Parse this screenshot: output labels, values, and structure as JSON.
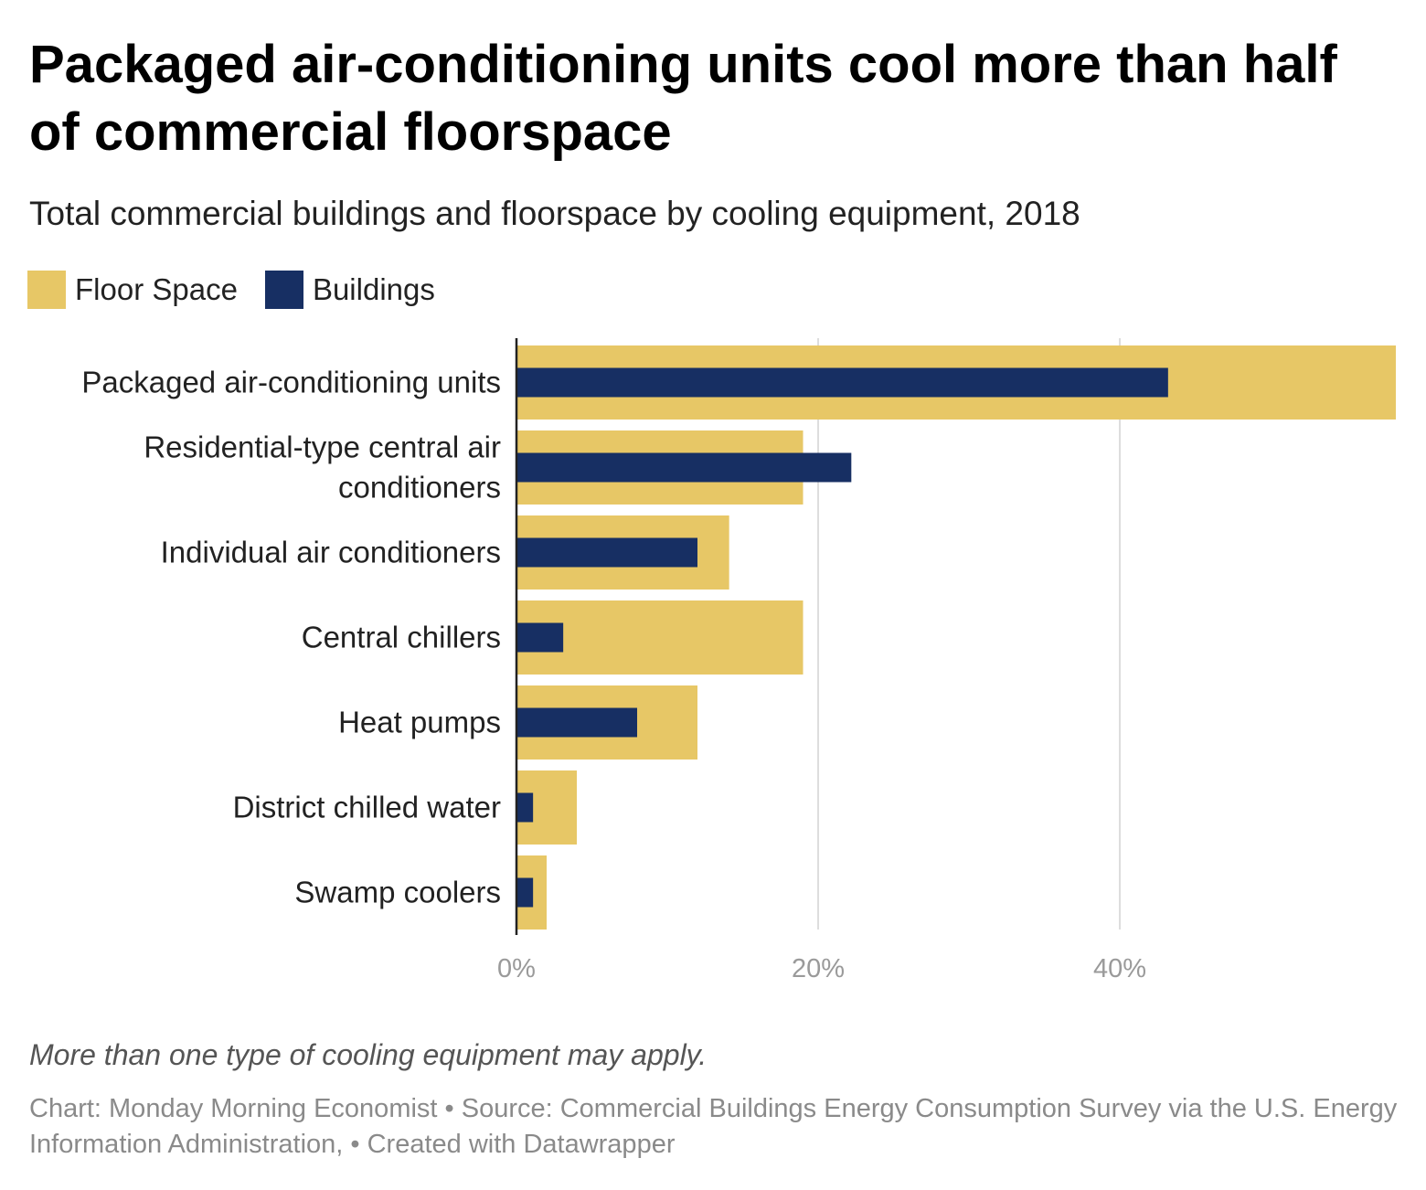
{
  "header": {
    "title": "Packaged air-conditioning units cool more than half of commercial floorspace",
    "subtitle": "Total commercial buildings and floorspace by cooling equipment, 2018"
  },
  "legend": [
    {
      "label": "Floor Space",
      "color": "#E7C766"
    },
    {
      "label": "Buildings",
      "color": "#172F63"
    }
  ],
  "chart_data": {
    "type": "bar",
    "orientation": "horizontal",
    "categories": [
      "Packaged air-conditioning units",
      "Residential-type central air conditioners",
      "Individual air conditioners",
      "Central chillers",
      "Heat pumps",
      "District chilled water",
      "Swamp coolers"
    ],
    "category_lines": [
      [
        "Packaged air-conditioning units"
      ],
      [
        "Residential-type central air",
        "conditioners"
      ],
      [
        "Individual air conditioners"
      ],
      [
        "Central chillers"
      ],
      [
        "Heat pumps"
      ],
      [
        "District chilled water"
      ],
      [
        "Swamp coolers"
      ]
    ],
    "series": [
      {
        "name": "Floor Space",
        "color": "#E7C766",
        "values": [
          58.3,
          19.0,
          14.1,
          19.0,
          12.0,
          4.0,
          2.0
        ]
      },
      {
        "name": "Buildings",
        "color": "#172F63",
        "values": [
          43.2,
          22.2,
          12.0,
          3.1,
          8.0,
          1.1,
          1.1
        ]
      }
    ],
    "xlim": [
      0,
      58.3
    ],
    "xticks": [
      0,
      20,
      40
    ],
    "xtick_labels": [
      "0%",
      "20%",
      "40%"
    ],
    "grid": true,
    "legend_position": "top-left"
  },
  "footer": {
    "note": "More than one type of cooling equipment may apply.",
    "source": "Chart: Monday Morning Economist • Source: Commercial Buildings Energy Consumption Survey via the U.S. Energy Information Administration,  • Created with Datawrapper"
  }
}
